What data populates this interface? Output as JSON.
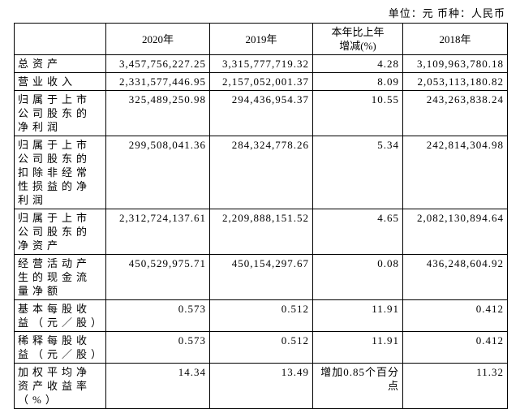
{
  "unit_note": "单位：元  币种：人民币",
  "table": {
    "header": [
      "",
      "2020年",
      "2019年",
      "本年比上年增减(%)",
      "2018年"
    ],
    "rows": [
      [
        "总资产",
        "3,457,756,227.25",
        "3,315,777,719.32",
        "4.28",
        "3,109,963,780.18"
      ],
      [
        "营业收入",
        "2,331,577,446.95",
        "2,157,052,001.37",
        "8.09",
        "2,053,113,180.82"
      ],
      [
        "归属于上市公司股东的净利润",
        "325,489,250.98",
        "294,436,954.37",
        "10.55",
        "243,263,838.24"
      ],
      [
        "归属于上市公司股东的扣除非经常性损益的净利润",
        "299,508,041.36",
        "284,324,778.26",
        "5.34",
        "242,814,304.98"
      ],
      [
        "归属于上市公司股东的净资产",
        "2,312,724,137.61",
        "2,209,888,151.52",
        "4.65",
        "2,082,130,894.64"
      ],
      [
        "经营活动产生的现金流量净额",
        "450,529,975.71",
        "450,154,297.67",
        "0.08",
        "436,248,604.92"
      ],
      [
        "基本每股收益（元／股）",
        "0.573",
        "0.512",
        "11.91",
        "0.412"
      ],
      [
        "稀释每股收益（元／股）",
        "0.573",
        "0.512",
        "11.91",
        "0.412"
      ],
      [
        "加权平均净资产收益率（%）",
        "14.34",
        "13.49",
        "增加0.85个百分点",
        "11.32"
      ]
    ]
  }
}
